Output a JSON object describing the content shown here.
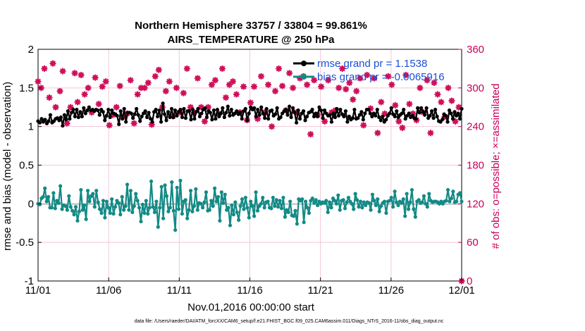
{
  "chart_data": {
    "type": "line",
    "title_line1": "Northern Hemisphere 33757 / 33804 = 99.861%",
    "title_line2": "AIRS_TEMPERATURE @ 250 hPa",
    "xlabel": "Nov.01,2016 00:00:00 start",
    "ylabel_left": "rmse and bias (model - observation)",
    "ylabel_right": "# of obs: o=possible; ×=assimilated",
    "x_range_days": [
      0,
      30
    ],
    "ylim_left": [
      -1,
      2
    ],
    "ylim_right": [
      0,
      360
    ],
    "x_tick_labels": [
      "11/01",
      "11/06",
      "11/11",
      "11/16",
      "11/21",
      "11/26",
      "12/01"
    ],
    "y_tick_labels_left": [
      "-1",
      "-0.5",
      "0",
      "0.5",
      "1",
      "1.5",
      "2"
    ],
    "y_tick_labels_right": [
      "0",
      "60",
      "120",
      "180",
      "240",
      "300",
      "360"
    ],
    "legend": [
      "rmse grand pr = 1.1538",
      "bias grand pr = -0.0065916"
    ],
    "footnote": "data file: /Users/raeder/DAI/ATM_forcXX/CAM6_setup/f.e21.FHIST_BGC.f09_025.CAM6assim.011/Diags_NTrS_2016-11/obs_diag_output.nc",
    "colors": {
      "rmse": "#000000",
      "bias": "#138a86",
      "obs_count": "#d0105a",
      "grid": "#f2c7d8",
      "right_axis": "#c8005a",
      "legend_text": "#1a4fd6"
    },
    "series": [
      {
        "name": "rmse",
        "values": [
          1.07,
          1.05,
          1.1,
          1.06,
          1.09,
          1.04,
          1.07,
          1.15,
          1.05,
          1.07,
          1.1,
          1.11,
          1.08,
          1.12,
          1.01,
          1.15,
          1.09,
          1.2,
          1.1,
          1.18,
          1.22,
          1.13,
          1.22,
          1.12,
          1.19,
          1.13,
          1.24,
          1.17,
          1.21,
          1.25,
          1.21,
          1.22,
          1.2,
          1.22,
          1.21,
          1.15,
          1.22,
          1.19,
          1.08,
          1.14,
          1.22,
          1.12,
          1.21,
          1.17,
          1.16,
          1.14,
          1.03,
          1.2,
          1.1,
          1.23,
          1.06,
          1.18,
          1.18,
          1.17,
          1.11,
          1.16,
          1.23,
          1.15,
          1.07,
          1.13,
          1.17,
          1.2,
          1.12,
          1.18,
          1.1,
          1.06,
          1.19,
          1.22,
          1.13,
          1.21,
          1.06,
          1.3,
          1.16,
          1.08,
          1.19,
          1.12,
          1.23,
          1.12,
          1.21,
          1.14,
          1.19,
          1.22,
          1.12,
          1.23,
          1.11,
          1.2,
          1.2,
          1.09,
          1.22,
          1.1,
          1.19,
          1.23,
          1.13,
          1.17,
          1.22,
          1.24,
          1.12,
          1.2,
          1.18,
          1.09,
          1.21,
          1.1,
          1.22,
          1.13,
          1.17,
          1.24,
          1.12,
          1.18,
          1.26,
          1.14,
          1.22,
          1.15,
          1.17,
          1.2,
          1.16,
          1.18,
          1.1,
          1.2,
          1.23,
          1.08,
          1.17,
          1.25,
          1.22,
          1.24,
          1.13,
          1.22,
          1.15,
          1.25,
          1.17,
          1.11,
          1.23,
          1.1,
          1.2,
          1.21,
          1.14,
          1.16,
          1.24,
          1.1,
          1.12,
          1.17,
          1.2,
          1.22,
          1.15,
          1.26,
          1.12,
          1.24,
          1.18,
          1.05,
          1.21,
          1.1,
          1.17,
          1.2,
          1.08,
          1.13,
          1.18,
          1.19,
          1.22,
          1.13,
          1.17,
          1.13,
          1.25,
          1.21,
          1.11,
          1.21,
          1.17,
          1.14,
          1.15,
          1.06,
          1.17,
          1.12,
          1.23,
          1.14,
          1.22,
          1.16,
          1.13,
          1.2,
          1.06,
          1.13,
          1.09,
          1.11,
          1.22,
          1.1,
          1.11,
          1.15,
          1.19,
          1.09,
          1.17,
          1.22,
          1.22,
          1.17,
          1.13,
          1.17,
          1.14,
          1.22,
          1.12,
          1.08,
          1.13,
          1.06,
          1.09,
          1.14,
          1.17,
          1.24,
          1.16,
          1.13,
          1.2,
          1.12,
          1.15,
          1.17,
          1.22,
          1.1,
          1.14,
          1.17,
          1.12,
          1.14,
          1.11,
          1.1,
          1.24,
          1.18,
          1.24,
          1.19,
          1.15,
          1.24,
          1.11,
          1.14,
          1.2,
          1.11,
          1.22,
          1.13,
          1.07,
          1.06,
          1.09,
          1.16,
          1.14,
          1.06,
          1.21,
          1.17,
          1.1,
          1.19,
          1.14,
          1.17,
          1.1,
          1.23
        ]
      },
      {
        "name": "bias",
        "values": [
          0.0,
          -0.01,
          0.07,
          0.09,
          0.2,
          0.03,
          0.09,
          -0.05,
          -0.05,
          0.14,
          -0.06,
          0.04,
          0.01,
          0.23,
          -0.07,
          -0.02,
          -0.03,
          -0.08,
          0.1,
          -0.04,
          -0.09,
          -0.14,
          -0.04,
          -0.22,
          -0.1,
          0.18,
          -0.08,
          -0.02,
          -0.2,
          0.17,
          0.03,
          0.1,
          0.13,
          -0.04,
          0.17,
          0.02,
          -0.07,
          -0.12,
          0.04,
          -0.18,
          0.03,
          -0.05,
          -0.12,
          0.06,
          -0.13,
          -0.04,
          0.04,
          0.01,
          -0.14,
          0.09,
          -0.08,
          -0.03,
          0.25,
          -0.08,
          0.17,
          -0.11,
          -0.03,
          0.13,
          0.04,
          -0.05,
          -0.23,
          -0.01,
          -0.12,
          0.04,
          -0.13,
          -0.05,
          0.29,
          -0.04,
          -0.11,
          0.03,
          -0.3,
          -0.05,
          0.22,
          -0.19,
          0.24,
          0.1,
          -0.1,
          -0.05,
          0.28,
          -0.09,
          -0.34,
          0.21,
          -0.07,
          0.3,
          -0.13,
          0.03,
          0.05,
          -0.19,
          -0.08,
          0.17,
          -0.1,
          -0.03,
          0.19,
          -0.08,
          0.01,
          0.0,
          -0.05,
          0.02,
          0.15,
          -0.09,
          -0.08,
          0.04,
          -0.03,
          0.2,
          0.03,
          0.09,
          -0.22,
          0.15,
          0.01,
          0.12,
          -0.08,
          -0.05,
          -0.28,
          -0.02,
          -0.14,
          0.02,
          -0.11,
          -0.21,
          -0.03,
          0.06,
          -0.07,
          0.08,
          -0.05,
          -0.18,
          0.03,
          -0.03,
          -0.16,
          0.15,
          -0.09,
          -0.03,
          0.0,
          0.08,
          -0.05,
          0.02,
          0.03,
          -0.05,
          -0.06,
          0.08,
          -0.03,
          0.05,
          -0.04,
          0.04,
          -0.06,
          0.08,
          -0.17,
          -0.08,
          -0.11,
          0.03,
          -0.15,
          -0.16,
          -0.09,
          -0.26,
          0.06,
          0.04,
          0.06,
          -0.24,
          0.03,
          -0.05,
          -0.12,
          0.04,
          0.07,
          0.01,
          0.05,
          -0.02,
          0.03,
          0.0,
          0.02,
          0.01,
          0.04,
          -0.11,
          0.02,
          -0.05,
          0.07,
          0.04,
          0.0,
          0.11,
          -0.08,
          0.04,
          0.05,
          -0.06,
          0.02,
          0.08,
          0.03,
          0.0,
          -0.07,
          0.13,
          0.05,
          -0.04,
          0.03,
          -0.05,
          0.02,
          -0.02,
          0.02,
          0.01,
          -0.08,
          0.12,
          0.04,
          -0.02,
          0.06,
          -0.1,
          -0.03,
          0.01,
          0.03,
          -0.12,
          0.03,
          0.04,
          0.08,
          -0.04,
          0.16,
          0.02,
          -0.02,
          0.03,
          0.01,
          0.06,
          -0.16,
          0.13,
          -0.07,
          0.02,
          0.18,
          -0.07,
          -0.17,
          0.03,
          0.05,
          0.01,
          0.02,
          0.1,
          0.0,
          -0.04,
          0.13,
          0.04,
          0.02,
          0.03,
          0.03,
          0.02,
          0.0,
          0.03,
          0.0,
          0.03,
          0.04,
          0.18,
          0.03,
          0.07,
          0.16,
          0.02,
          0.03,
          0.12,
          0.14,
          0.03
        ]
      },
      {
        "name": "obs_count",
        "x": [
          0.0,
          0.22,
          0.45,
          0.8,
          1.05,
          1.25,
          1.55,
          1.75,
          2.05,
          2.3,
          2.6,
          2.8,
          3.05,
          3.3,
          3.55,
          3.8,
          4.05,
          4.3,
          4.55,
          4.8,
          5.05,
          5.3,
          5.55,
          5.8,
          6.05,
          6.3,
          6.55,
          6.8,
          7.05,
          7.3,
          7.55,
          7.8,
          8.05,
          8.3,
          8.55,
          8.8,
          9.05,
          9.3,
          9.55,
          9.8,
          10.05,
          10.3,
          10.55,
          10.8,
          11.05,
          11.3,
          11.55,
          11.8,
          12.05,
          12.3,
          12.55,
          12.8,
          13.05,
          13.3,
          13.55,
          13.8,
          14.05,
          14.3,
          14.55,
          14.8,
          15.05,
          15.3,
          15.55,
          15.8,
          16.05,
          16.3,
          16.55,
          16.8,
          17.05,
          17.3,
          17.55,
          17.8,
          18.05,
          18.3,
          18.55,
          18.8,
          19.05,
          19.3,
          19.55,
          19.8,
          20.05,
          20.3,
          20.55,
          20.8,
          21.05,
          21.3,
          21.55,
          21.8,
          22.05,
          22.3,
          22.55,
          22.8,
          23.05,
          23.3,
          23.55,
          23.8,
          24.05,
          24.3,
          24.55,
          24.8,
          25.05,
          25.3,
          25.55,
          25.8,
          26.05,
          26.3,
          26.55,
          26.8,
          27.05,
          27.3,
          27.55,
          27.8,
          28.05,
          28.3,
          28.55,
          28.8,
          29.05,
          29.3,
          29.55,
          29.8,
          30.0
        ],
        "values": [
          310,
          300,
          330,
          285,
          338,
          270,
          295,
          326,
          245,
          270,
          323,
          278,
          320,
          290,
          300,
          262,
          316,
          275,
          302,
          310,
          242,
          258,
          270,
          303,
          255,
          260,
          312,
          245,
          290,
          300,
          300,
          308,
          243,
          318,
          328,
          270,
          295,
          310,
          256,
          300,
          262,
          292,
          330,
          270,
          262,
          315,
          270,
          248,
          270,
          305,
          312,
          260,
          330,
          285,
          305,
          310,
          290,
          262,
          302,
          250,
          277,
          302,
          252,
          318,
          262,
          305,
          240,
          295,
          330,
          303,
          265,
          323,
          300,
          262,
          315,
          318,
          305,
          228,
          312,
          258,
          302,
          248,
          312,
          262,
          265,
          300,
          330,
          298,
          308,
          282,
          295,
          315,
          242,
          320,
          268,
          315,
          230,
          278,
          260,
          318,
          305,
          273,
          248,
          238,
          320,
          275,
          260,
          250,
          300,
          262,
          312,
          230,
          308,
          290,
          278,
          255,
          300,
          280,
          248,
          270,
          0
        ]
      }
    ]
  }
}
